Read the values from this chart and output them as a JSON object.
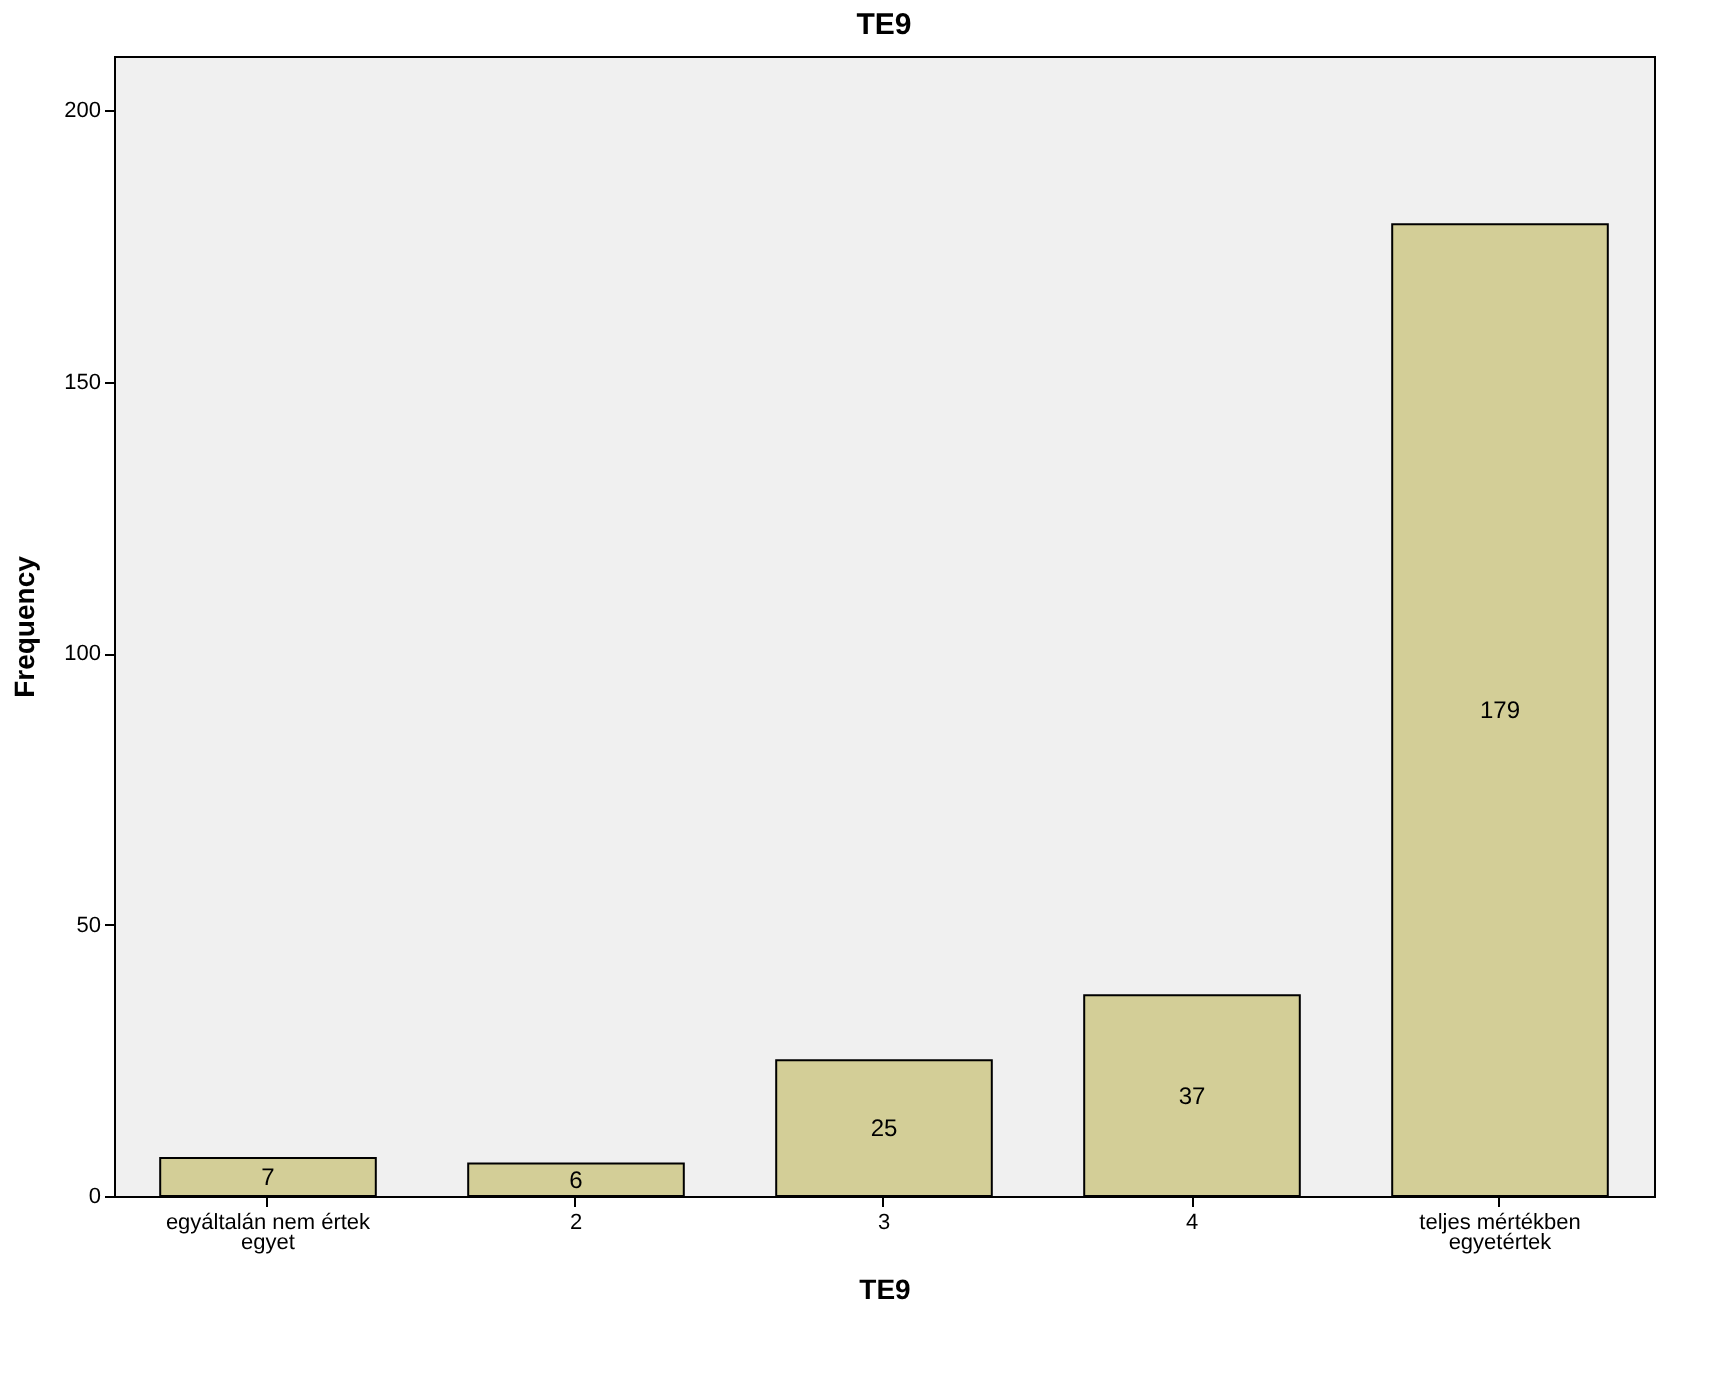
{
  "chart_data": {
    "type": "bar",
    "title": "TE9",
    "xlabel": "TE9",
    "ylabel": "Frequency",
    "categories": [
      "egyáltalán nem értek egyet",
      "2",
      "3",
      "4",
      "teljes mértékben egyetértek"
    ],
    "values": [
      7,
      6,
      25,
      37,
      179
    ],
    "color": "#d3ce97",
    "ylim": [
      0,
      210
    ],
    "yticks": [
      0,
      50,
      100,
      150,
      200
    ],
    "grid": false,
    "data_labels": true
  }
}
